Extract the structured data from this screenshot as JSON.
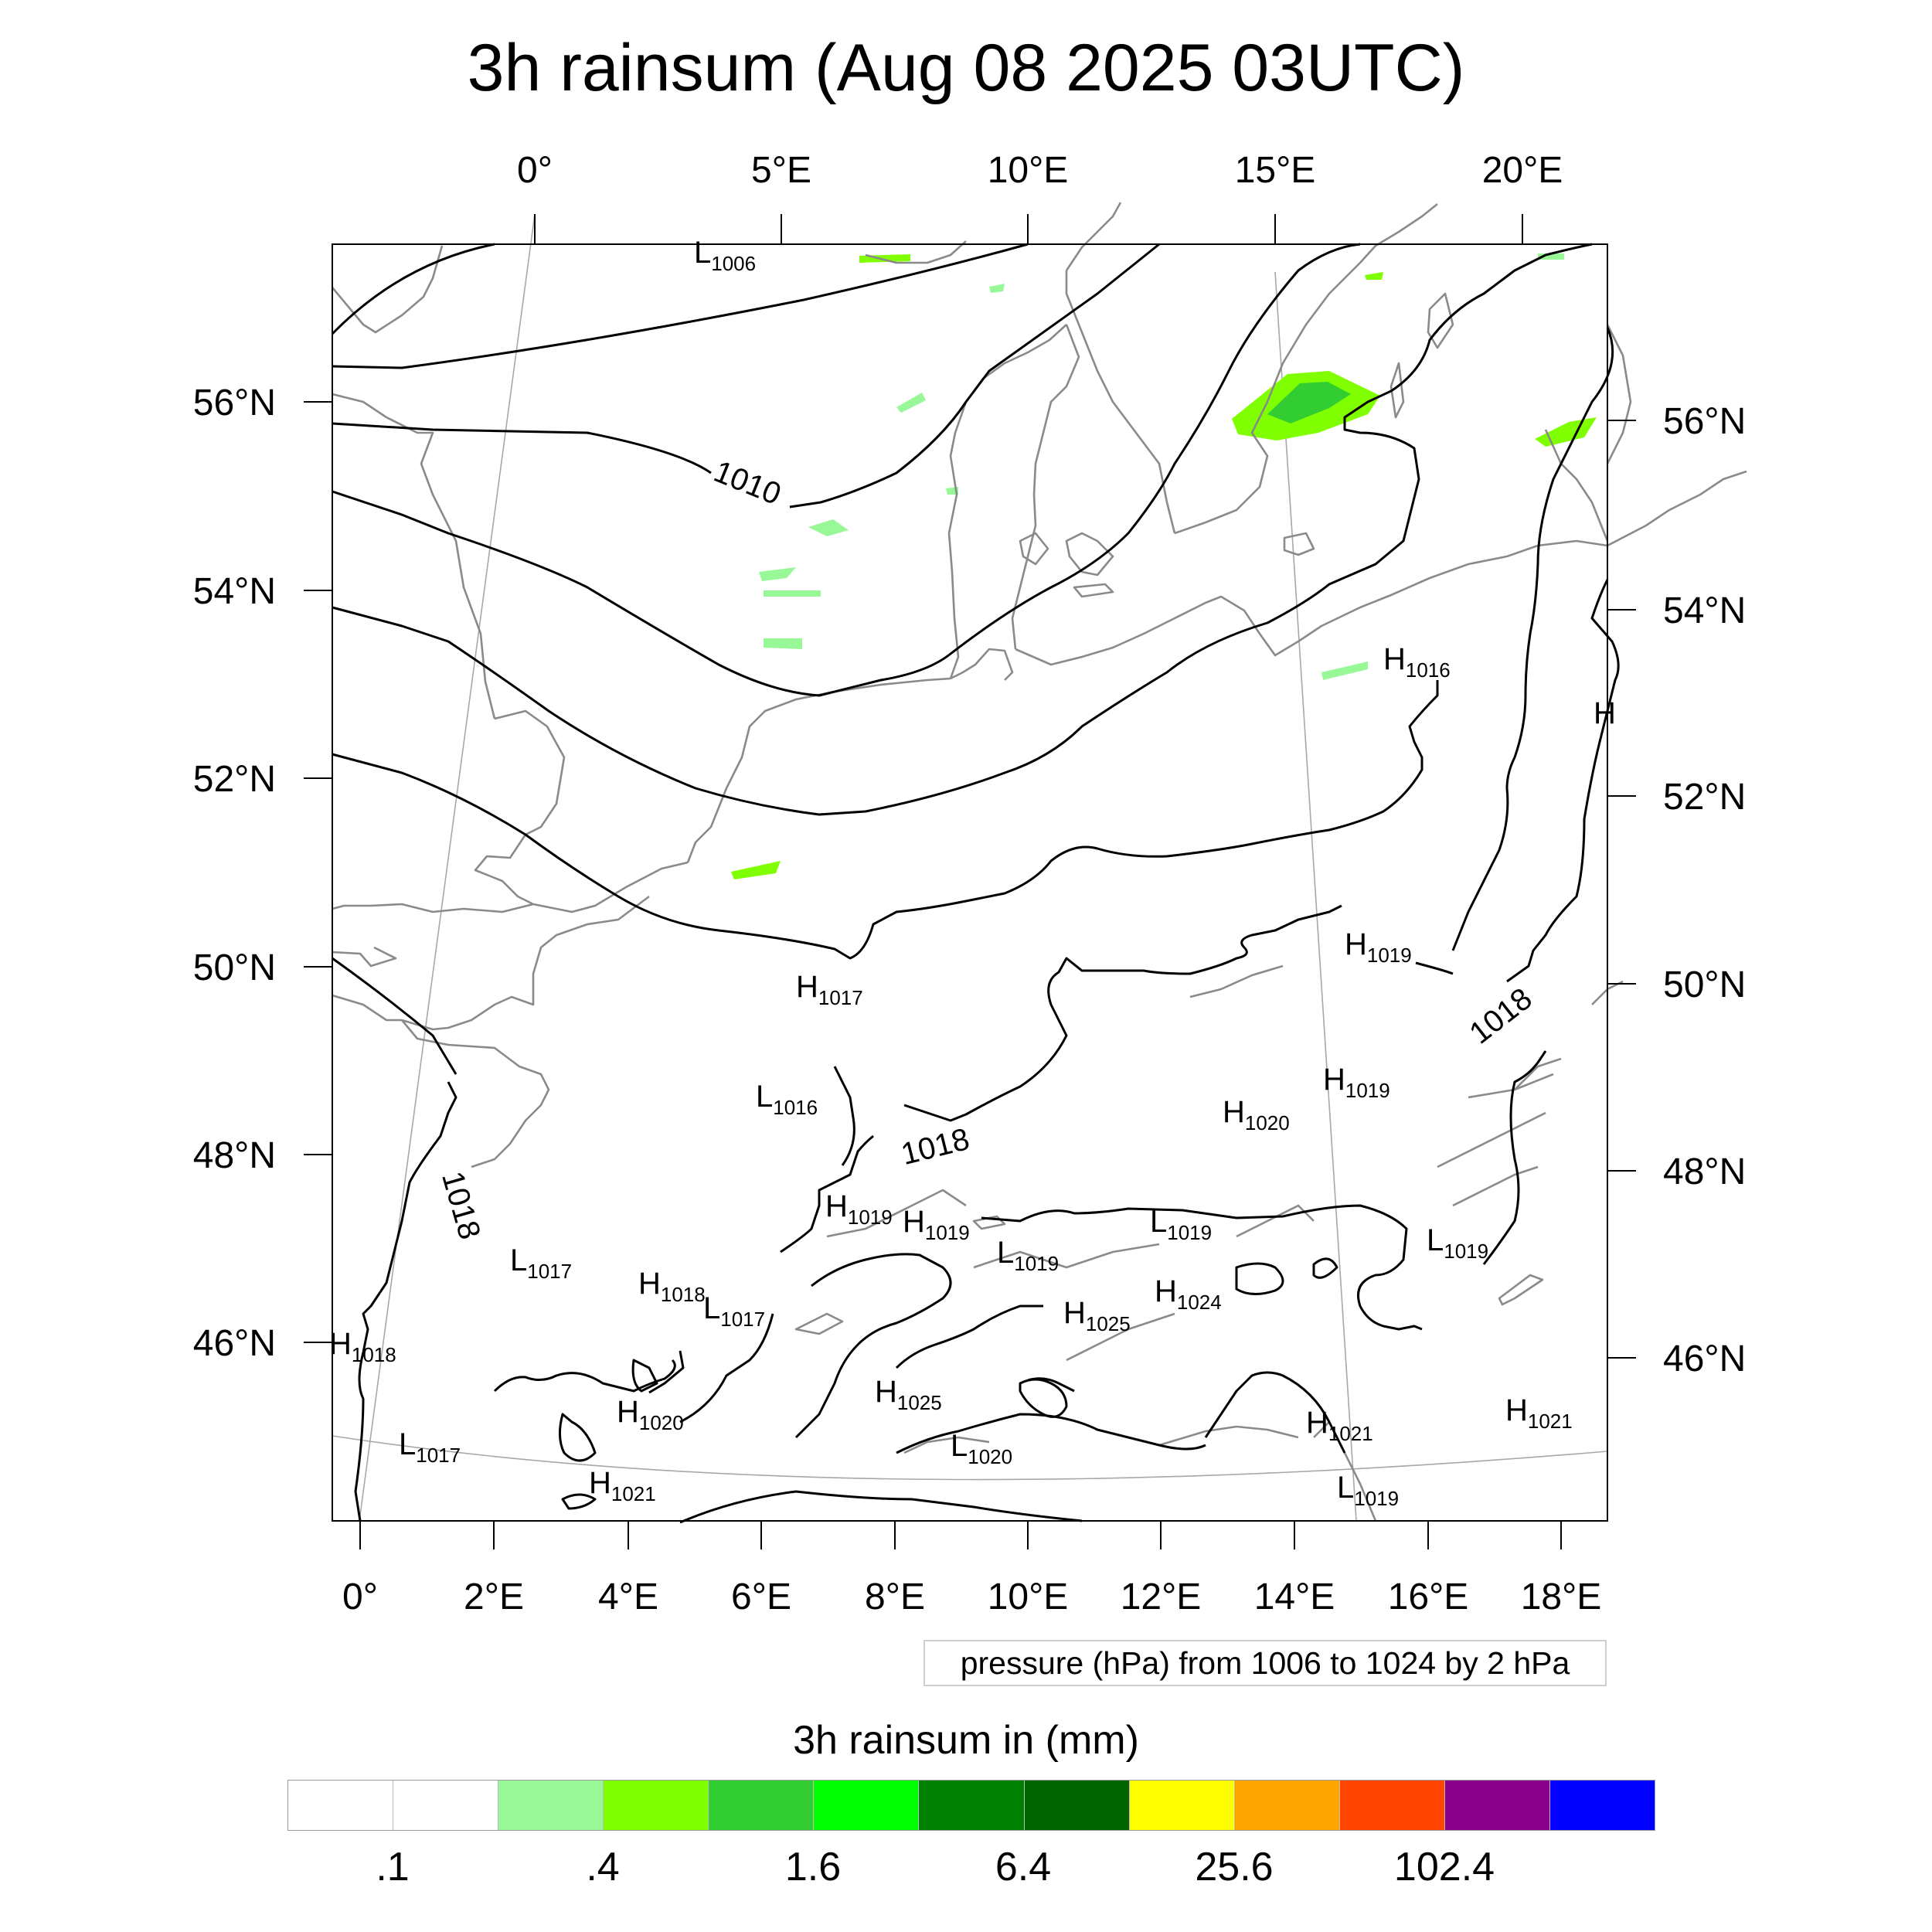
{
  "title": "3h rainsum (Aug 08 2025 03UTC)",
  "map": {
    "top_lon_labels": [
      "0°",
      "5°E",
      "10°E",
      "15°E",
      "20°E"
    ],
    "bottom_lon_labels": [
      "0°",
      "2°E",
      "4°E",
      "6°E",
      "8°E",
      "10°E",
      "12°E",
      "14°E",
      "16°E",
      "18°E"
    ],
    "left_lat_labels": [
      "56°N",
      "54°N",
      "52°N",
      "50°N",
      "48°N",
      "46°N"
    ],
    "right_lat_labels": [
      "56°N",
      "54°N",
      "52°N",
      "50°N",
      "48°N",
      "46°N"
    ],
    "contour_labels": [
      "1010",
      "1018",
      "1018",
      "1018"
    ],
    "pressure_centers": [
      {
        "type": "L",
        "value": "1006"
      },
      {
        "type": "H",
        "value": "1016"
      },
      {
        "type": "H",
        "value": ""
      },
      {
        "type": "H",
        "value": "1017"
      },
      {
        "type": "H",
        "value": "1019"
      },
      {
        "type": "L",
        "value": "1016"
      },
      {
        "type": "H",
        "value": "1019"
      },
      {
        "type": "H",
        "value": "1020"
      },
      {
        "type": "H",
        "value": "1019"
      },
      {
        "type": "H",
        "value": "1019"
      },
      {
        "type": "L",
        "value": "1019"
      },
      {
        "type": "L",
        "value": "1019"
      },
      {
        "type": "L",
        "value": "1019"
      },
      {
        "type": "L",
        "value": "1017"
      },
      {
        "type": "H",
        "value": "1018"
      },
      {
        "type": "L",
        "value": "1017"
      },
      {
        "type": "H",
        "value": "1024"
      },
      {
        "type": "H",
        "value": "1025"
      },
      {
        "type": "H",
        "value": "1018"
      },
      {
        "type": "H",
        "value": "1025"
      },
      {
        "type": "H",
        "value": "1020"
      },
      {
        "type": "L",
        "value": "1017"
      },
      {
        "type": "L",
        "value": "1020"
      },
      {
        "type": "H",
        "value": "1021"
      },
      {
        "type": "H",
        "value": "1021"
      },
      {
        "type": "H",
        "value": "1021"
      },
      {
        "type": "L",
        "value": "1019"
      }
    ]
  },
  "pressure_note": "pressure (hPa) from 1006 to 1024 by 2 hPa",
  "colorbar": {
    "title": "3h rainsum in (mm)",
    "colors": [
      "#ffffff",
      "#ffffff",
      "#98f898",
      "#80ff00",
      "#32cd32",
      "#00ff00",
      "#008000",
      "#006400",
      "#ffff00",
      "#ffa500",
      "#ff4500",
      "#8b008b",
      "#0000ff"
    ],
    "labels": [
      ".1",
      ".4",
      "1.6",
      "6.4",
      "25.6",
      "102.4"
    ]
  }
}
